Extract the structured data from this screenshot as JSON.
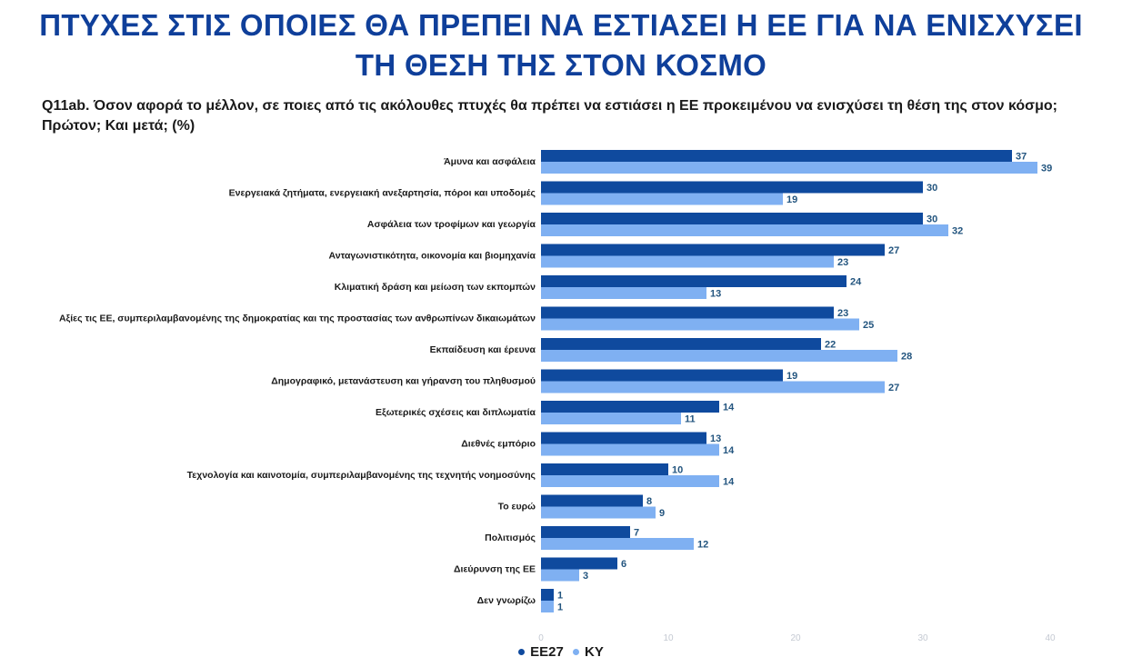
{
  "title_lines": [
    "ΠΤΥΧΕΣ ΣΤΙΣ ΟΠΟΙΕΣ ΘΑ ΠΡΕΠΕΙ ΝΑ ΕΣΤΙΑΣΕΙ Η ΕΕ ΓΙΑ ΝΑ ΕΝΙΣΧΥΣΕΙ",
    "ΤΗ ΘΕΣΗ ΤΗΣ ΣΤΟΝ ΚΟΣΜΟ"
  ],
  "question": "Q11ab. Όσον αφορά το μέλλον, σε ποιες από τις ακόλουθες πτυχές θα πρέπει να εστιάσει η ΕΕ προκειμένου να ενισχύσει τη θέση της στον κόσμο; Πρώτον; Και μετά; (%)",
  "colors": {
    "title": "#0f3f9a",
    "ee27": "#0f4a9e",
    "ky": "#7fb0f2",
    "value_text": "#23557f"
  },
  "chart_data": {
    "type": "bar",
    "orientation": "horizontal",
    "categories": [
      "Άμυνα και ασφάλεια",
      "Ενεργειακά ζητήματα, ενεργειακή ανεξαρτησία, πόροι και υποδομές",
      "Ασφάλεια των τροφίμων και γεωργία",
      "Ανταγωνιστικότητα, οικονομία και βιομηχανία",
      "Κλιματική δράση και μείωση των εκπομπών",
      "Αξίες τις ΕΕ, συμπεριλαμβανομένης της δημοκρατίας και της προστασίας των ανθρωπίνων δικαιωμάτων",
      "Εκπαίδευση και έρευνα",
      "Δημογραφικό, μετανάστευση και γήρανση του πληθυσμού",
      "Εξωτερικές σχέσεις και διπλωματία",
      "Διεθνές εμπόριο",
      "Τεχνολογία και καινοτομία, συμπεριλαμβανομένης της τεχνητής νοημοσύνης",
      "Το ευρώ",
      "Πολιτισμός",
      "Διεύρυνση της ΕΕ",
      "Δεν γνωρίζω"
    ],
    "series": [
      {
        "name": "ΕΕ27",
        "color": "#0f4a9e",
        "values": [
          37,
          30,
          30,
          27,
          24,
          23,
          22,
          19,
          14,
          13,
          10,
          8,
          7,
          6,
          1
        ]
      },
      {
        "name": "ΚΥ",
        "color": "#7fb0f2",
        "values": [
          39,
          19,
          32,
          23,
          13,
          25,
          28,
          27,
          11,
          14,
          14,
          9,
          12,
          3,
          1
        ]
      }
    ],
    "xlim": [
      0,
      40
    ],
    "xticks": [
      0,
      10,
      20,
      30,
      40
    ],
    "grid": false,
    "legend_position": "bottom-center"
  }
}
